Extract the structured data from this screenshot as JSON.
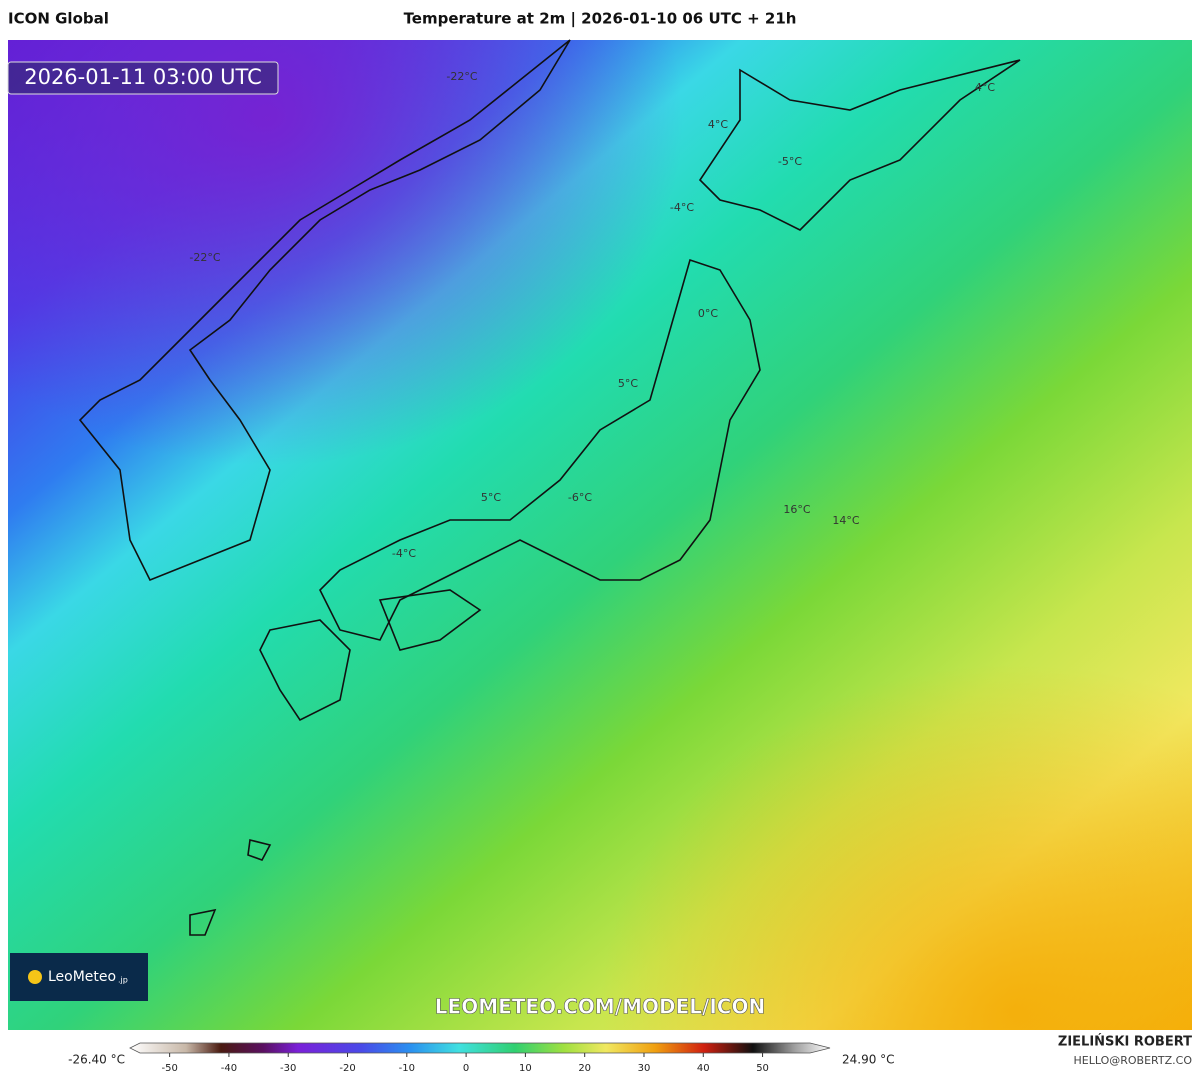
{
  "header": {
    "model": "ICON Global",
    "title": "Temperature at 2m | 2026-01-10 06 UTC + 21h"
  },
  "map": {
    "valid_time": "2026-01-11 03:00 UTC",
    "labels": [
      "-22°C",
      "4°C",
      "-5°C",
      "4°C",
      "-4°C",
      "-22°C",
      "0°C",
      "5°C",
      "5°C",
      "-6°C",
      "16°C",
      "14°C",
      "-4°C"
    ],
    "watermark": "LEOMETEO.COM/MODEL/ICON",
    "logo": {
      "name": "LeoMeteo",
      "suffix": ".jp"
    }
  },
  "colorbar": {
    "min_label": "-26.40 °C",
    "max_label": "24.90 °C",
    "lim": [
      -55,
      58
    ],
    "ticks": [
      -50,
      -40,
      -30,
      -20,
      -10,
      0,
      10,
      20,
      30,
      40,
      50
    ]
  },
  "footer": {
    "author": "ZIELIŃSKI ROBERT",
    "contact": "HELLO@ROBERTZ.CO"
  }
}
